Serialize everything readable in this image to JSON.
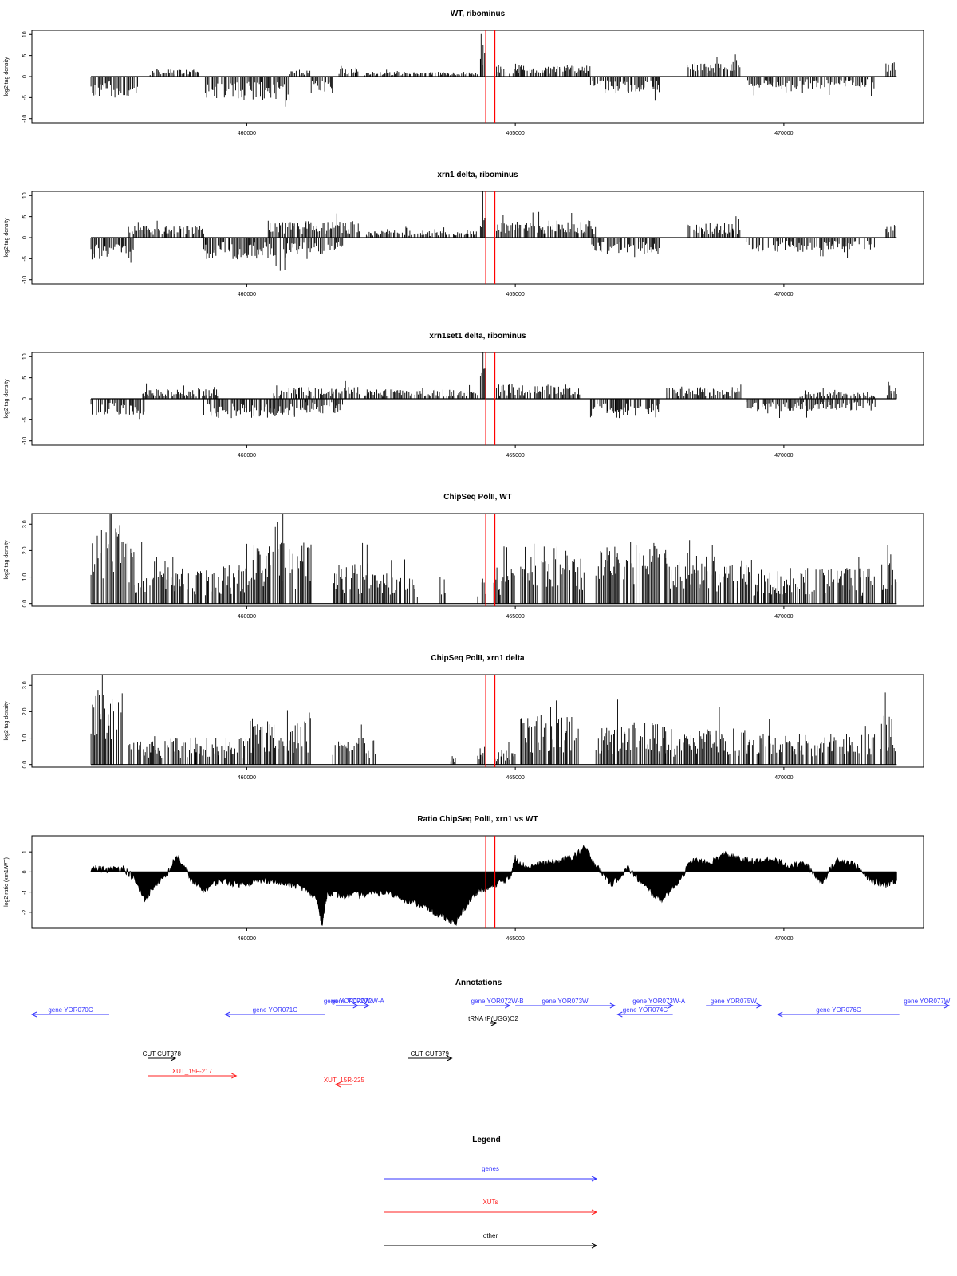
{
  "chart_data": [
    {
      "type": "bar",
      "title": "WT, ribominus",
      "ylabel": "log2 tag density",
      "ylim": [
        -11,
        11
      ],
      "yticks": [
        "10",
        "5",
        "0",
        "-5",
        "-10"
      ],
      "xlim": [
        456000,
        472600
      ],
      "xticks": [
        "460000",
        "465000",
        "470000"
      ],
      "highlight_lines_x": [
        464450,
        464620
      ],
      "segments": [
        {
          "x": [
            457100,
            458000
          ],
          "mag": 4.5,
          "dir": -1
        },
        {
          "x": [
            458200,
            459100
          ],
          "mag": 1.5,
          "dir": 1
        },
        {
          "x": [
            459200,
            460800
          ],
          "mag": 5,
          "dir": -1
        },
        {
          "x": [
            460800,
            461200
          ],
          "mag": 1.5,
          "dir": 1
        },
        {
          "x": [
            461200,
            461700
          ],
          "mag": 3.5,
          "dir": -1
        },
        {
          "x": [
            461700,
            462100
          ],
          "mag": 2,
          "dir": 1
        },
        {
          "x": [
            462200,
            464300
          ],
          "mag": 1,
          "dir": 1
        },
        {
          "x": [
            464350,
            464450
          ],
          "mag": 9,
          "dir": 1
        },
        {
          "x": [
            464650,
            466400
          ],
          "mag": 2.5,
          "dir": 1
        },
        {
          "x": [
            466400,
            467700
          ],
          "mag": 3.5,
          "dir": -1
        },
        {
          "x": [
            468200,
            469200
          ],
          "mag": 3,
          "dir": 1
        },
        {
          "x": [
            469300,
            471700
          ],
          "mag": 2.5,
          "dir": -1
        },
        {
          "x": [
            471900,
            472100
          ],
          "mag": 3,
          "dir": 1
        }
      ]
    },
    {
      "type": "bar",
      "title": "xrn1 delta, ribominus",
      "ylabel": "log2 tag density",
      "ylim": [
        -11,
        11
      ],
      "yticks": [
        "10",
        "5",
        "0",
        "-5",
        "-10"
      ],
      "xlim": [
        456000,
        472600
      ],
      "xticks": [
        "460000",
        "465000",
        "470000"
      ],
      "highlight_lines_x": [
        464450,
        464620
      ],
      "segments": [
        {
          "x": [
            457100,
            457900
          ],
          "mag": 4.5,
          "dir": -1
        },
        {
          "x": [
            457800,
            459200
          ],
          "mag": 2.5,
          "dir": 1
        },
        {
          "x": [
            459200,
            460800
          ],
          "mag": 4.5,
          "dir": -1
        },
        {
          "x": [
            460400,
            462100
          ],
          "mag": 3.5,
          "dir": 1
        },
        {
          "x": [
            460800,
            461800
          ],
          "mag": 3.5,
          "dir": -1
        },
        {
          "x": [
            462200,
            464300
          ],
          "mag": 1.5,
          "dir": 1
        },
        {
          "x": [
            464350,
            464450
          ],
          "mag": 9,
          "dir": 1
        },
        {
          "x": [
            464650,
            466500
          ],
          "mag": 3.5,
          "dir": 1
        },
        {
          "x": [
            466400,
            467700
          ],
          "mag": 3.5,
          "dir": -1
        },
        {
          "x": [
            468200,
            469200
          ],
          "mag": 3,
          "dir": 1
        },
        {
          "x": [
            469300,
            471700
          ],
          "mag": 3,
          "dir": -1
        },
        {
          "x": [
            471900,
            472100
          ],
          "mag": 3,
          "dir": 1
        }
      ]
    },
    {
      "type": "bar",
      "title": "xrn1set1 delta, ribominus",
      "ylabel": "log2 tag density",
      "ylim": [
        -11,
        11
      ],
      "yticks": [
        "10",
        "5",
        "0",
        "-5",
        "-10"
      ],
      "xlim": [
        456000,
        472600
      ],
      "xticks": [
        "460000",
        "465000",
        "470000"
      ],
      "highlight_lines_x": [
        464450,
        464620
      ],
      "segments": [
        {
          "x": [
            457100,
            458100
          ],
          "mag": 3.5,
          "dir": -1
        },
        {
          "x": [
            458000,
            459500
          ],
          "mag": 2,
          "dir": 1
        },
        {
          "x": [
            459200,
            461000
          ],
          "mag": 4,
          "dir": -1
        },
        {
          "x": [
            460500,
            462100
          ],
          "mag": 2.5,
          "dir": 1
        },
        {
          "x": [
            461000,
            461800
          ],
          "mag": 3,
          "dir": -1
        },
        {
          "x": [
            462200,
            464300
          ],
          "mag": 2,
          "dir": 1
        },
        {
          "x": [
            464350,
            464450
          ],
          "mag": 9,
          "dir": 1
        },
        {
          "x": [
            464650,
            466200
          ],
          "mag": 3,
          "dir": 1
        },
        {
          "x": [
            466400,
            467700
          ],
          "mag": 4,
          "dir": -1
        },
        {
          "x": [
            467800,
            469200
          ],
          "mag": 2.5,
          "dir": 1
        },
        {
          "x": [
            469300,
            471700
          ],
          "mag": 2.5,
          "dir": -1
        },
        {
          "x": [
            470300,
            471700
          ],
          "mag": 1.5,
          "dir": 1
        },
        {
          "x": [
            471900,
            472100
          ],
          "mag": 3.5,
          "dir": 1
        }
      ]
    },
    {
      "type": "bar",
      "title": "ChipSeq PolII, WT",
      "ylabel": "log2 tag density",
      "ylim": [
        -0.1,
        3.4
      ],
      "yticks": [
        "3.0",
        "2.0",
        "1.0",
        "0.0"
      ],
      "xlim": [
        456000,
        472600
      ],
      "xticks": [
        "460000",
        "465000",
        "470000"
      ],
      "highlight_lines_x": [
        464450,
        464620
      ],
      "segments": [
        {
          "x": [
            457100,
            457900
          ],
          "mag": 2.6,
          "dir": 1
        },
        {
          "x": [
            457900,
            458800
          ],
          "mag": 1.6,
          "dir": 1
        },
        {
          "x": [
            458800,
            459500
          ],
          "mag": 1.2,
          "dir": 1
        },
        {
          "x": [
            459500,
            460000
          ],
          "mag": 1.3,
          "dir": 1
        },
        {
          "x": [
            460000,
            461200
          ],
          "mag": 2.0,
          "dir": 1
        },
        {
          "x": [
            461600,
            462500
          ],
          "mag": 1.3,
          "dir": 1
        },
        {
          "x": [
            462500,
            463200
          ],
          "mag": 1.0,
          "dir": 1
        },
        {
          "x": [
            463600,
            463700
          ],
          "mag": 1.0,
          "dir": 1
        },
        {
          "x": [
            464300,
            464450
          ],
          "mag": 1.0,
          "dir": 1
        },
        {
          "x": [
            464600,
            465000
          ],
          "mag": 1.2,
          "dir": 1
        },
        {
          "x": [
            465100,
            466300
          ],
          "mag": 2.0,
          "dir": 1
        },
        {
          "x": [
            466500,
            467800
          ],
          "mag": 2.1,
          "dir": 1
        },
        {
          "x": [
            467800,
            469300
          ],
          "mag": 1.6,
          "dir": 1
        },
        {
          "x": [
            469300,
            471700
          ],
          "mag": 1.2,
          "dir": 1
        },
        {
          "x": [
            471800,
            472100
          ],
          "mag": 2.0,
          "dir": 1
        }
      ]
    },
    {
      "type": "bar",
      "title": "ChipSeq PolII, xrn1 delta",
      "ylabel": "log2 tag density",
      "ylim": [
        -0.1,
        3.4
      ],
      "yticks": [
        "3.0",
        "2.0",
        "1.0",
        "0.0"
      ],
      "xlim": [
        456000,
        472600
      ],
      "xticks": [
        "460000",
        "465000",
        "470000"
      ],
      "highlight_lines_x": [
        464450,
        464620
      ],
      "segments": [
        {
          "x": [
            457100,
            457700
          ],
          "mag": 2.5,
          "dir": 1
        },
        {
          "x": [
            457800,
            459200
          ],
          "mag": 0.9,
          "dir": 1
        },
        {
          "x": [
            459200,
            460000
          ],
          "mag": 0.9,
          "dir": 1
        },
        {
          "x": [
            460000,
            461200
          ],
          "mag": 1.5,
          "dir": 1
        },
        {
          "x": [
            461600,
            462400
          ],
          "mag": 1.0,
          "dir": 1
        },
        {
          "x": [
            463800,
            463900
          ],
          "mag": 0.3,
          "dir": 1
        },
        {
          "x": [
            464300,
            464450
          ],
          "mag": 0.6,
          "dir": 1
        },
        {
          "x": [
            464600,
            465000
          ],
          "mag": 0.5,
          "dir": 1
        },
        {
          "x": [
            465100,
            466200
          ],
          "mag": 1.7,
          "dir": 1
        },
        {
          "x": [
            466500,
            467800
          ],
          "mag": 1.4,
          "dir": 1
        },
        {
          "x": [
            467800,
            469300
          ],
          "mag": 1.2,
          "dir": 1
        },
        {
          "x": [
            469300,
            471700
          ],
          "mag": 1.0,
          "dir": 1
        },
        {
          "x": [
            471800,
            472100
          ],
          "mag": 1.7,
          "dir": 1
        }
      ]
    },
    {
      "type": "area",
      "title": "Ratio ChipSeq PolII, xrn1 vs WT",
      "ylabel": "log2 ratio (xrn1/WT)",
      "ylim": [
        -2.8,
        1.8
      ],
      "yticks": [
        "1",
        "0",
        "-1",
        "-2"
      ],
      "xlim": [
        456000,
        472600
      ],
      "xticks": [
        "460000",
        "465000",
        "470000"
      ],
      "highlight_lines_x": [
        464450,
        464620
      ],
      "x": [
        457100,
        457400,
        457700,
        457900,
        458100,
        458300,
        458500,
        458700,
        459000,
        459200,
        459500,
        459800,
        460100,
        460400,
        460700,
        461000,
        461300,
        461400,
        461500,
        461800,
        462200,
        462600,
        463000,
        463300,
        463500,
        463700,
        463900,
        464100,
        464300,
        464500,
        464700,
        464900,
        465000,
        465200,
        465500,
        465800,
        466100,
        466300,
        466500,
        466800,
        467100,
        467400,
        467700,
        468000,
        468300,
        468600,
        468900,
        469200,
        469500,
        469800,
        470100,
        470400,
        470700,
        471000,
        471300,
        471600,
        471900,
        472100
      ],
      "values": [
        0.2,
        0.1,
        0.2,
        -0.3,
        -1.4,
        -0.6,
        -0.2,
        0.8,
        -0.5,
        -0.9,
        -0.4,
        -0.6,
        -0.5,
        -0.4,
        -0.6,
        -0.7,
        -1.3,
        -2.6,
        -1.0,
        -1.2,
        -1.1,
        -1.0,
        -1.4,
        -1.7,
        -2.0,
        -2.3,
        -2.5,
        -1.6,
        -0.9,
        -0.8,
        -0.5,
        -0.3,
        0.7,
        0.2,
        0.4,
        0.5,
        0.8,
        1.2,
        0.3,
        -0.6,
        0.2,
        -0.7,
        -1.4,
        -0.6,
        0.6,
        0.4,
        0.9,
        0.6,
        0.5,
        0.6,
        0.3,
        0.4,
        -0.5,
        0.6,
        0.4,
        -0.4,
        -0.6,
        -0.4
      ]
    }
  ],
  "annotations": {
    "title": "Annotations",
    "xlim": [
      456000,
      472600
    ],
    "items": [
      {
        "label": "gene YOR070C",
        "x0": 457400,
        "x1": 456000,
        "row": 0,
        "color": "blue"
      },
      {
        "label": "gene YOR071C",
        "x0": 461300,
        "x1": 459500,
        "row": 0,
        "color": "blue"
      },
      {
        "label": "gene YOR072W",
        "x0": 461500,
        "x1": 461900,
        "row": -1,
        "color": "blue"
      },
      {
        "label": "gene YOR072W-A",
        "x0": 461700,
        "x1": 462100,
        "row": -1,
        "color": "blue"
      },
      {
        "label": "gene YOR072W-B",
        "x0": 464200,
        "x1": 464650,
        "row": -1,
        "color": "blue"
      },
      {
        "label": "gene YOR073W",
        "x0": 464750,
        "x1": 466550,
        "row": -1,
        "color": "blue"
      },
      {
        "label": "gene YOR073W-A",
        "x0": 467100,
        "x1": 467600,
        "row": -1,
        "color": "blue"
      },
      {
        "label": "gene YOR074C",
        "x0": 467600,
        "x1": 466600,
        "row": 0,
        "color": "blue"
      },
      {
        "label": "gene YOR075W",
        "x0": 468200,
        "x1": 469200,
        "row": -1,
        "color": "blue"
      },
      {
        "label": "gene YOR076C",
        "x0": 471700,
        "x1": 469500,
        "row": 0,
        "color": "blue"
      },
      {
        "label": "gene YOR077W",
        "x0": 471800,
        "x1": 472600,
        "row": -1,
        "color": "blue"
      },
      {
        "label": "tRNA tP(UGG)O2",
        "x0": 464300,
        "x1": 464400,
        "row": 1,
        "color": "black"
      },
      {
        "label": "CUT CUT378",
        "x0": 458100,
        "x1": 458600,
        "row": 5,
        "color": "black"
      },
      {
        "label": "CUT CUT379",
        "x0": 462800,
        "x1": 463600,
        "row": 5,
        "color": "black"
      },
      {
        "label": "XUT_15F-217",
        "x0": 458100,
        "x1": 459700,
        "row": 7,
        "color": "red"
      },
      {
        "label": "XUT_15R-225",
        "x0": 461800,
        "x1": 461500,
        "row": 8,
        "color": "red"
      }
    ]
  },
  "legend": {
    "title": "Legend",
    "entries": [
      {
        "label": "genes",
        "color": "#3333ff"
      },
      {
        "label": "XUTs",
        "color": "#ff2222"
      },
      {
        "label": "other",
        "color": "#000000"
      }
    ]
  },
  "colors": {
    "genes": "#3333ff",
    "xuts": "#ff2222",
    "other": "#000000",
    "highlight": "#ff0000",
    "plot": "#000000"
  }
}
